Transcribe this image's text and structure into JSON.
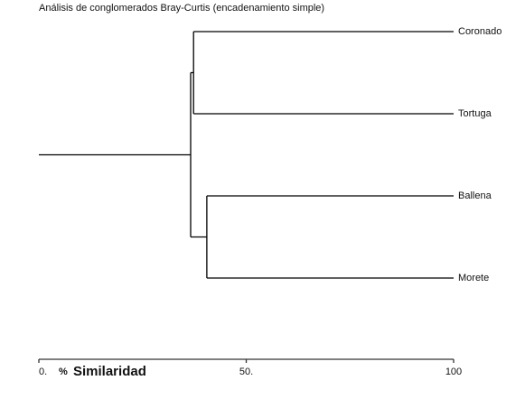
{
  "chart_data": {
    "type": "dendrogram",
    "title": "Análisis de conglomerados Bray-Curtis (encadenamiento simple)",
    "leaves": [
      "Coronado",
      "Tortuga",
      "Ballena",
      "Morete"
    ],
    "merges": [
      {
        "children": [
          0,
          1
        ],
        "value": 37.3
      },
      {
        "children": [
          2,
          3
        ],
        "value": 40.5
      },
      {
        "children": [
          4,
          5
        ],
        "value": 36.6
      }
    ],
    "xlim": [
      0,
      100
    ],
    "xticks": [
      {
        "value": 0,
        "label": "0."
      },
      {
        "value": 50,
        "label": "50."
      },
      100
    ],
    "x_unit": "%",
    "x_label": "Similaridad",
    "color": "#000000"
  }
}
